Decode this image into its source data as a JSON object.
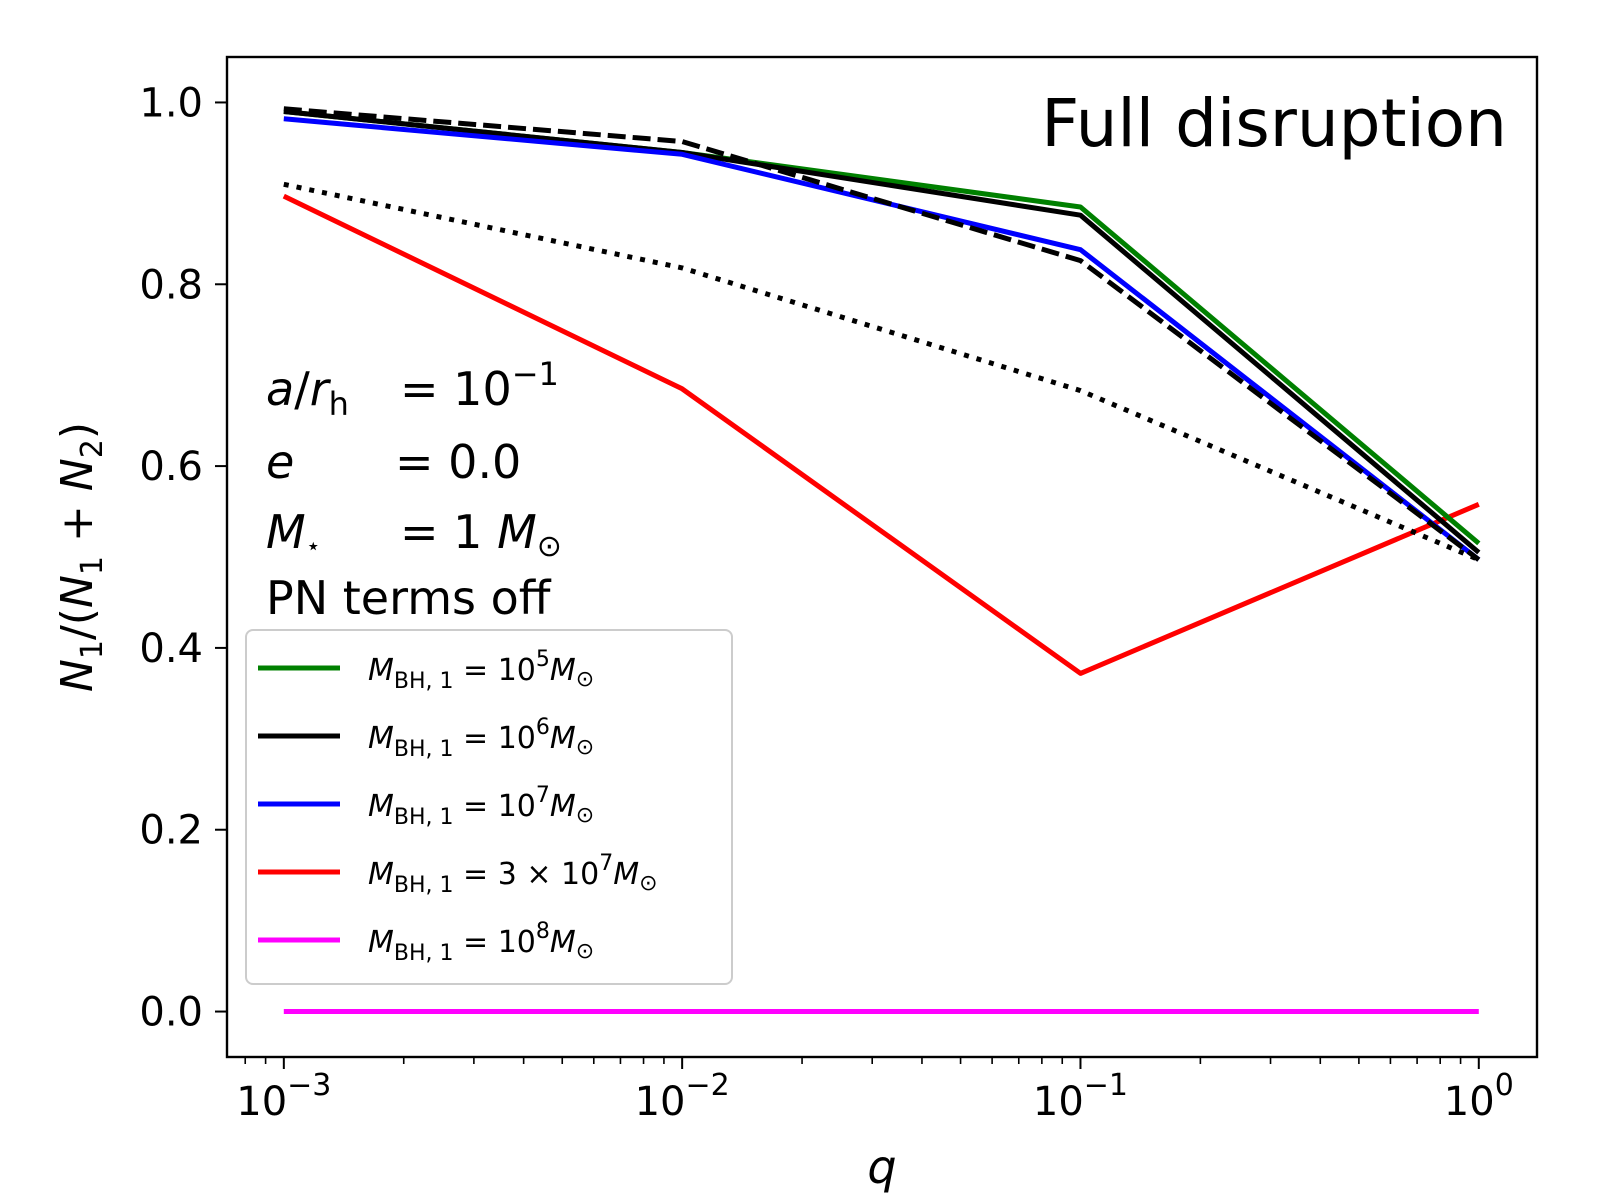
{
  "chart_data": {
    "type": "line",
    "title": "Full disruption",
    "xlabel": "q",
    "ylabel": "N1/(N1+N2)",
    "ylabel_parts": {
      "a": "N",
      "a_sub": "1",
      "b": "/(",
      "c": "N",
      "c_sub": "1",
      "d": " + ",
      "e": "N",
      "e_sub": "2",
      "f": ")"
    },
    "xscale": "log",
    "xlim": [
      0.00072,
      1.4
    ],
    "ylim": [
      -0.05,
      1.05
    ],
    "x": [
      0.001,
      0.01,
      0.1,
      1.0
    ],
    "x_ticks": [
      {
        "value": 0.001,
        "base": "10",
        "exp": "−3"
      },
      {
        "value": 0.01,
        "base": "10",
        "exp": "−2"
      },
      {
        "value": 0.1,
        "base": "10",
        "exp": "−1"
      },
      {
        "value": 1.0,
        "base": "10",
        "exp": "0"
      }
    ],
    "y_ticks": [
      {
        "value": 0.0,
        "label": "0.0"
      },
      {
        "value": 0.2,
        "label": "0.2"
      },
      {
        "value": 0.4,
        "label": "0.4"
      },
      {
        "value": 0.6,
        "label": "0.6"
      },
      {
        "value": 0.8,
        "label": "0.8"
      },
      {
        "value": 1.0,
        "label": "1.0"
      }
    ],
    "grid": false,
    "legend_position": "lower-left",
    "series": [
      {
        "id": "green",
        "exp": "5",
        "prefix": "",
        "color": "#008000",
        "style": "solid",
        "values": [
          0.99,
          0.945,
          0.885,
          0.515
        ]
      },
      {
        "id": "black",
        "exp": "6",
        "prefix": "",
        "color": "#000000",
        "style": "solid",
        "values": [
          0.99,
          0.945,
          0.876,
          0.505
        ]
      },
      {
        "id": "blue",
        "exp": "7",
        "prefix": "",
        "color": "#0000ff",
        "style": "solid",
        "values": [
          0.982,
          0.943,
          0.838,
          0.497
        ]
      },
      {
        "id": "red",
        "exp": "7",
        "prefix": "3 × ",
        "color": "#ff0000",
        "style": "solid",
        "values": [
          0.897,
          0.685,
          0.372,
          0.558
        ]
      },
      {
        "id": "magenta",
        "exp": "8",
        "prefix": "",
        "color": "#ff00ff",
        "style": "solid",
        "values": [
          0.0,
          0.0,
          0.0,
          0.0
        ]
      }
    ],
    "reference_lines": [
      {
        "id": "dashed-ref",
        "color": "#000000",
        "style": "dashed",
        "values": [
          0.993,
          0.957,
          0.826,
          0.497
        ]
      },
      {
        "id": "dotted-ref",
        "color": "#000000",
        "style": "dotted",
        "values": [
          0.91,
          0.818,
          0.683,
          0.497
        ]
      }
    ],
    "legend": {
      "label_main": "M",
      "label_sub": "BH, 1",
      "label_eq": " = ",
      "label_base": "10",
      "label_tail": "M",
      "label_odot": "⊙"
    },
    "annotations": {
      "line1": {
        "lhs": "a",
        "slash": "/",
        "r": "r",
        "r_sub": "h",
        "eq": "= ",
        "base": "10",
        "exp": "−1"
      },
      "line2": {
        "lhs": "e",
        "eq": "= ",
        "value": "0.0"
      },
      "line3": {
        "lhs": "M",
        "star": "⋆",
        "eq": "= ",
        "value": "1 ",
        "unit": "M",
        "odot": "⊙"
      },
      "line4": {
        "text": "PN terms off"
      }
    }
  }
}
